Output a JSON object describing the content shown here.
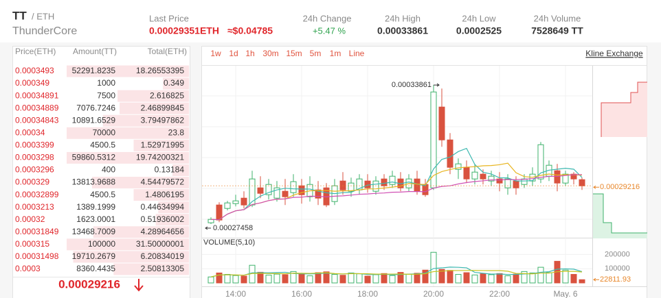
{
  "header": {
    "symbol": "TT",
    "quote": "/ ETH",
    "name": "ThunderCore",
    "last_price_label": "Last Price",
    "last_price": "0.00029351ETH",
    "last_price_usd": "≈$0.04785",
    "change_label": "24h Change",
    "change": "+5.47 %",
    "high_label": "24h High",
    "high": "0.00033861",
    "low_label": "24h Low",
    "low": "0.0002525",
    "volume_label": "24h Volume",
    "volume": "7528649 TT"
  },
  "orderbook": {
    "columns": [
      "Price(ETH)",
      "Amount(TT)",
      "Total(ETH)"
    ],
    "rows": [
      [
        "0.0003493",
        "52291.8235",
        "18.26553395"
      ],
      [
        "0.000349",
        "1000",
        "0.349"
      ],
      [
        "0.00034891",
        "7500",
        "2.616825"
      ],
      [
        "0.00034889",
        "7076.7246",
        "2.46899845"
      ],
      [
        "0.00034843",
        "10891.6529",
        "3.79497862"
      ],
      [
        "0.00034",
        "70000",
        "23.8"
      ],
      [
        "0.0003399",
        "4500.5",
        "1.52971995"
      ],
      [
        "0.0003298",
        "59860.5312",
        "19.74200321"
      ],
      [
        "0.0003296",
        "400",
        "0.13184"
      ],
      [
        "0.000329",
        "13813.9688",
        "4.54479572"
      ],
      [
        "0.00032899",
        "4500.5",
        "1.4806195"
      ],
      [
        "0.0003213",
        "1389.1999",
        "0.44634994"
      ],
      [
        "0.00032",
        "1623.0001",
        "0.51936002"
      ],
      [
        "0.00031849",
        "13468.7009",
        "4.28964656"
      ],
      [
        "0.000315",
        "100000",
        "31.50000001"
      ],
      [
        "0.00031498",
        "19710.2679",
        "6.20834019"
      ],
      [
        "0.0003",
        "8360.4435",
        "2.50813305"
      ]
    ],
    "current_price": "0.00029216"
  },
  "tabs": [
    "1w",
    "1d",
    "1h",
    "30m",
    "15m",
    "5m",
    "1m",
    "Line"
  ],
  "link": "Kline Exchange",
  "chart_data": {
    "type": "candlestick",
    "categories": [
      null,
      null,
      null,
      "14:00",
      null,
      null,
      null,
      null,
      null,
      null,
      null,
      "16:00",
      null,
      null,
      null,
      null,
      null,
      null,
      null,
      "18:00",
      null,
      null,
      null,
      null,
      null,
      null,
      null,
      "20:00",
      null,
      null,
      null,
      null,
      null,
      null,
      null,
      "22:00",
      null,
      null,
      null,
      null,
      null,
      null,
      null,
      "May. 6",
      null,
      null
    ],
    "open": [
      0.00027515,
      0.00028335,
      0.00028177,
      0.00028398,
      0.0002865,
      0.00028335,
      0.00029124,
      0.00028808,
      0.0002865,
      0.00028966,
      0.00028903,
      0.00029218,
      0.00028714,
      0.00029029,
      0.00029124,
      0.00028493,
      0.00029439,
      0.00028966,
      0.00029029,
      0.00029439,
      0.00028966,
      0.00029534,
      0.00029281,
      0.00029534,
      0.00029124,
      0.00029534,
      0.00029281,
      0.00029124,
      0.00032847,
      0.00031332,
      0.00029976,
      0.0003007,
      0.00029534,
      0.00029755,
      0.00029439,
      0.00029534,
      0.00029124,
      0.00029439,
      0.00029281,
      0.00029439,
      0.00029534,
      0.0002966,
      0.00029912,
      0.00029345,
      0.00029755,
      0.00029502
    ],
    "high": [
      0.00027767,
      0.00028461,
      0.00028524,
      0.00028808,
      0.00028966,
      0.00029912,
      0.0002966,
      0.00029534,
      0.00029439,
      0.00029534,
      0.00029755,
      0.00029534,
      0.0002966,
      0.00029439,
      0.00029345,
      0.00029534,
      0.00029849,
      0.00029597,
      0.00029755,
      0.00029755,
      0.0002966,
      0.00029755,
      0.00029912,
      0.00029849,
      0.00029755,
      0.00029912,
      0.00029534,
      0.00033861,
      0.00033698,
      0.00031648,
      0.0003048,
      0.00030386,
      0.00030228,
      0.00029976,
      0.00029912,
      0.00029849,
      0.00029755,
      0.0002966,
      0.00029755,
      0.0003007,
      0.00031238,
      0.00030386,
      0.00030228,
      0.00029912,
      0.00029849,
      0.00029597
    ],
    "low": [
      0.00027458,
      0.00027546,
      0.00028083,
      0.00028272,
      0.00028177,
      0.0002824,
      0.0002865,
      0.00028587,
      0.00028493,
      0.00028335,
      0.00028714,
      0.00028398,
      0.00028493,
      0.00028335,
      0.0002824,
      0.00028335,
      0.00028808,
      0.00028714,
      0.00028808,
      0.00028903,
      0.00028808,
      0.00029029,
      0.00029124,
      0.00028966,
      0.00028966,
      0.00028808,
      0.00028714,
      0.00029029,
      0.00031017,
      0.00029755,
      0.00029534,
      0.00029345,
      0.00029281,
      0.00029281,
      0.00029218,
      0.00028966,
      0.00028808,
      0.00028808,
      0.00029124,
      0.00029218,
      0.00029345,
      0.00029439,
      0.00028966,
      0.00029218,
      0.00029281,
      0.00029029
    ],
    "close": [
      0.00027672,
      0.00027641,
      0.0002843,
      0.00028524,
      0.00028335,
      0.00029534,
      0.00028871,
      0.00029281,
      0.00029124,
      0.00028714,
      0.00029408,
      0.00028808,
      0.00029281,
      0.0002865,
      0.00028335,
      0.00029218,
      0.00029029,
      0.00029345,
      0.00029534,
      0.00029124,
      0.00029439,
      0.00029218,
      0.0002966,
      0.00029124,
      0.00029534,
      0.00028966,
      0.00028808,
      0.00033541,
      0.00031332,
      0.0003007,
      0.00030228,
      0.00029534,
      0.00029849,
      0.00029534,
      0.0002966,
      0.00029345,
      0.00029534,
      0.00029124,
      0.00029534,
      0.00029755,
      0.00031111,
      0.00030165,
      0.00029345,
      0.00029755,
      0.00029534,
      0.00029216
    ],
    "volume": [
      42000,
      70000,
      60000,
      52000,
      48000,
      124000,
      75000,
      55000,
      62000,
      58000,
      80000,
      66000,
      50000,
      72000,
      78000,
      60000,
      54000,
      70000,
      64000,
      48000,
      58000,
      66000,
      52000,
      74000,
      60000,
      68000,
      90000,
      215000,
      95000,
      88000,
      60000,
      72000,
      56000,
      64000,
      58000,
      66000,
      50000,
      62000,
      80000,
      70000,
      110000,
      72000,
      152000,
      90000,
      60000,
      22811.93
    ],
    "ylim": [
      0.00027,
      0.00035
    ],
    "high_annotation": 0.00033861,
    "low_annotation": 0.00027458,
    "last_price": 0.00029216,
    "up_color": "#3eb26b",
    "down_color": "#d9523f",
    "ma_periods": [
      5,
      10,
      30
    ],
    "ma_colors": [
      "#3cb8b0",
      "#e8b41e",
      "#d04fb4"
    ],
    "volume_title": "VOLUME(5,10)",
    "volume_ma_periods": [
      5,
      10
    ],
    "volume_ma_colors": [
      "#3cb8b0",
      "#c8c420"
    ],
    "volume_ylim": [
      0,
      250000
    ],
    "volume_yticks": [
      100000,
      200000
    ]
  }
}
